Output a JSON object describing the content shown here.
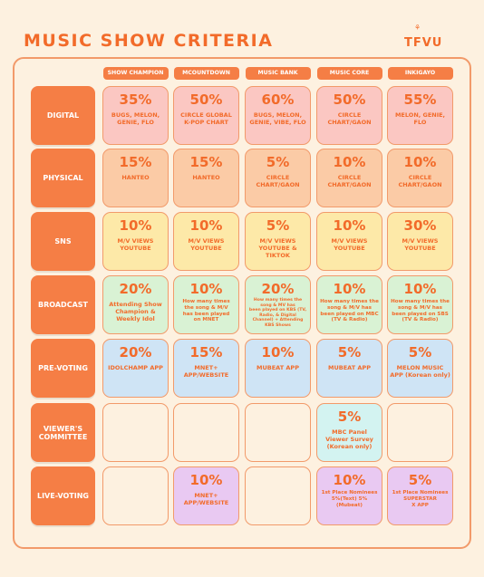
{
  "title": "MUSIC SHOW CRITERIA",
  "logo": "TFVU",
  "logo_mark": "⚘",
  "columns": [
    "SHOW CHAMPION",
    "MCOUNTDOWN",
    "MUSIC BANK",
    "MUSIC CORE",
    "INKIGAYO"
  ],
  "rows": [
    {
      "label": "DIGITAL",
      "cells": [
        {
          "pct": "35%",
          "desc": "BUGS, MELON,\nGENIE, FLO"
        },
        {
          "pct": "50%",
          "desc": "CIRCLE GLOBAL\nK-POP CHART"
        },
        {
          "pct": "60%",
          "desc": "BUGS, MELON,\nGENIE, VIBE, FLO"
        },
        {
          "pct": "50%",
          "desc": "CIRCLE\nCHART/GAON"
        },
        {
          "pct": "55%",
          "desc": "MELON, GENIE,\nFLO"
        }
      ]
    },
    {
      "label": "PHYSICAL",
      "cells": [
        {
          "pct": "15%",
          "desc": "HANTEO"
        },
        {
          "pct": "15%",
          "desc": "HANTEO"
        },
        {
          "pct": "5%",
          "desc": "CIRCLE\nCHART/GAON"
        },
        {
          "pct": "10%",
          "desc": "CIRCLE\nCHART/GAON"
        },
        {
          "pct": "10%",
          "desc": "CIRCLE\nCHART/GAON"
        }
      ]
    },
    {
      "label": "SNS",
      "cells": [
        {
          "pct": "10%",
          "desc": "M/V VIEWS\nYOUTUBE"
        },
        {
          "pct": "10%",
          "desc": "M/V VIEWS\nYOUTUBE"
        },
        {
          "pct": "5%",
          "desc": "M/V VIEWS\nYOUTUBE &\nTIKTOK"
        },
        {
          "pct": "10%",
          "desc": "M/V VIEWS\nYOUTUBE"
        },
        {
          "pct": "30%",
          "desc": "M/V VIEWS\nYOUTUBE"
        }
      ]
    },
    {
      "label": "BROADCAST",
      "cells": [
        {
          "pct": "20%",
          "desc": "Attending Show\nChampion &\nWeekly Idol"
        },
        {
          "pct": "10%",
          "desc": "How many times\nthe song & M/V\nhas been played\non MNET"
        },
        {
          "pct": "20%",
          "desc": "How many times the\nsong & MV has\nbeen played on KBS (TV,\nRadio, & Digital\nChannel) + Attending\nKBS Shows"
        },
        {
          "pct": "10%",
          "desc": "How many times the\nsong & M/V has\nbeen played  on MBC\n(TV & Radio)"
        },
        {
          "pct": "10%",
          "desc": "How many times the\nsong & M/V has\nbeen played  on SBS\n(TV & Radio)"
        }
      ]
    },
    {
      "label": "PRE-VOTING",
      "cells": [
        {
          "pct": "20%",
          "desc": "IDOLCHAMP APP"
        },
        {
          "pct": "15%",
          "desc": "MNET+\nAPP/WEBSITE"
        },
        {
          "pct": "10%",
          "desc": "MUBEAT APP"
        },
        {
          "pct": "5%",
          "desc": "MUBEAT APP"
        },
        {
          "pct": "5%",
          "desc": "MELON MUSIC\nAPP (Korean only)"
        }
      ]
    },
    {
      "label": "VIEWER'S\nCOMMITTEE",
      "cells": [
        {
          "pct": "",
          "desc": ""
        },
        {
          "pct": "",
          "desc": ""
        },
        {
          "pct": "",
          "desc": ""
        },
        {
          "pct": "5%",
          "desc": "MBC Panel\nViewer Survey\n(Korean only)"
        },
        {
          "pct": "",
          "desc": ""
        }
      ]
    },
    {
      "label": "LIVE-VOTING",
      "cells": [
        {
          "pct": "",
          "desc": ""
        },
        {
          "pct": "10%",
          "desc": "MNET+\nAPP/WEBSITE"
        },
        {
          "pct": "",
          "desc": ""
        },
        {
          "pct": "10%",
          "desc": "1st Place Nominees\n5%(Text) 5%\n(Mubeat)"
        },
        {
          "pct": "5%",
          "desc": "1st Place Nominees\nSUPERSTAR\nX APP"
        }
      ]
    }
  ],
  "colors": {
    "accent": "#F57E45",
    "title": "#F26B2A",
    "text": "#F26B2A",
    "border": "#F29A6A",
    "empty": "#FDF1E0",
    "digital": "#FBC7C2",
    "physical": "#FBCBA6",
    "sns": "#FDE9A8",
    "broadcast": "#D9F2D4",
    "prevoting": "#CFE4F5",
    "committee": "#D3F3F1",
    "livevoting": "#E9C9F2"
  }
}
